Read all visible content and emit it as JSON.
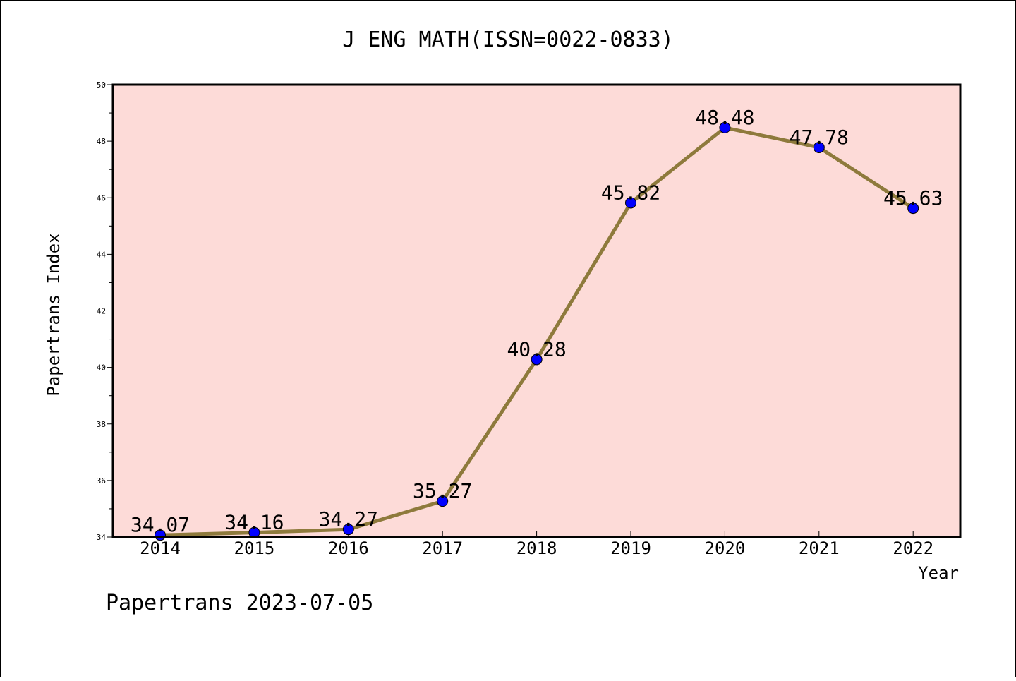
{
  "chart_data": {
    "type": "line",
    "title": "J ENG MATH(ISSN=0022-0833)",
    "xlabel": "Year",
    "ylabel": "Papertrans Index",
    "categories": [
      "2014",
      "2015",
      "2016",
      "2017",
      "2018",
      "2019",
      "2020",
      "2021",
      "2022"
    ],
    "values": [
      34.07,
      34.16,
      34.27,
      35.27,
      40.28,
      45.82,
      48.48,
      47.78,
      45.63
    ],
    "data_labels": [
      "34.07",
      "34.16",
      "34.27",
      "35.27",
      "40.28",
      "45.82",
      "48.48",
      "47.78",
      "45.63"
    ],
    "ylim": [
      34,
      50
    ],
    "yticks": [
      "34",
      "36",
      "38",
      "40",
      "42",
      "44",
      "46",
      "48",
      "50"
    ],
    "grid": false,
    "footer": "Papertrans 2023-07-05",
    "colors": {
      "plot_background": "#fddbd8",
      "line": "#8e7a3c",
      "marker": "#0000ff"
    }
  }
}
